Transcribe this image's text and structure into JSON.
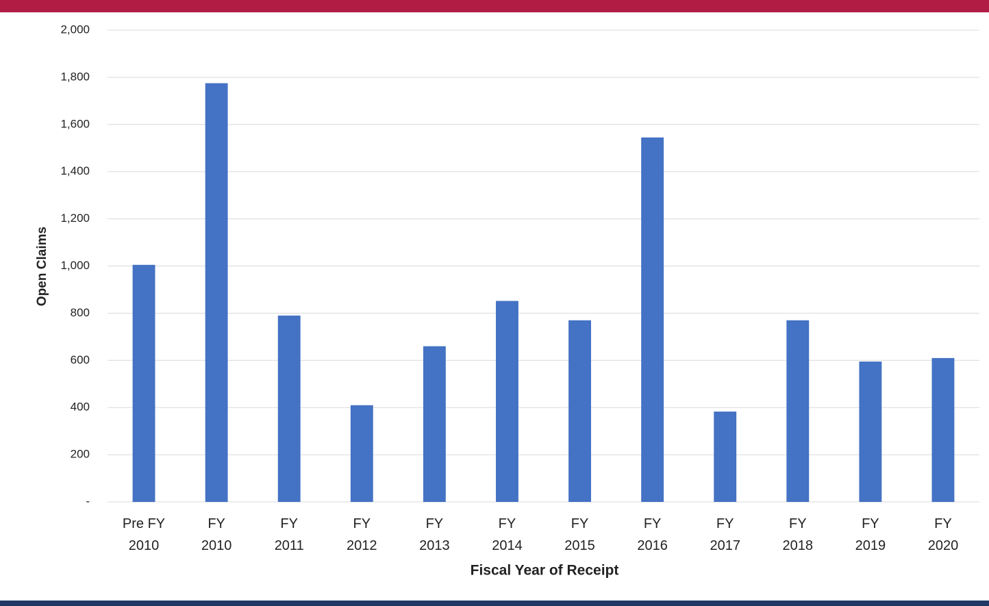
{
  "chart_data": {
    "type": "bar",
    "x_label": "Fiscal Year of Receipt",
    "y_label": "Open Claims",
    "categories": [
      "Pre FY 2010",
      "FY 2010",
      "FY 2011",
      "FY 2012",
      "FY 2013",
      "FY 2014",
      "FY 2015",
      "FY 2016",
      "FY 2017",
      "FY 2018",
      "FY 2019",
      "FY 2020"
    ],
    "values": [
      1005,
      1775,
      790,
      410,
      660,
      852,
      770,
      1545,
      383,
      770,
      595,
      610
    ],
    "color": "#4472c4",
    "ylim": [
      0,
      2000
    ],
    "yticks": [
      {
        "value": 0,
        "label": "-"
      },
      200,
      400,
      600,
      800,
      {
        "value": 1000,
        "label": "1,000"
      },
      {
        "value": 1200,
        "label": "1,200"
      },
      {
        "value": 1400,
        "label": "1,400"
      },
      {
        "value": 1600,
        "label": "1,600"
      },
      {
        "value": 1800,
        "label": "1,800"
      },
      {
        "value": 2000,
        "label": "2,000"
      }
    ],
    "grid": true
  }
}
